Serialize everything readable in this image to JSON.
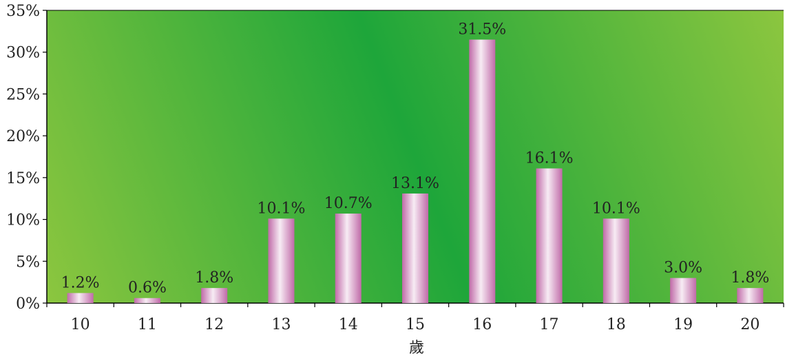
{
  "chart_data": {
    "type": "bar",
    "categories": [
      "10",
      "11",
      "12",
      "13",
      "14",
      "15",
      "16",
      "17",
      "18",
      "19",
      "20"
    ],
    "values": [
      1.2,
      0.6,
      1.8,
      10.1,
      10.7,
      13.1,
      31.5,
      16.1,
      10.1,
      3.0,
      1.8
    ],
    "data_labels": [
      "1.2%",
      "0.6%",
      "1.8%",
      "10.1%",
      "10.7%",
      "13.1%",
      "31.5%",
      "16.1%",
      "10.1%",
      "3.0%",
      "1.8%"
    ],
    "xlabel": "歲",
    "ylim": [
      0,
      35
    ],
    "y_ticks": [
      0,
      5,
      10,
      15,
      20,
      25,
      30,
      35
    ],
    "y_tick_labels": [
      "0%",
      "5%",
      "10%",
      "15%",
      "20%",
      "25%",
      "30%",
      "35%"
    ],
    "grid": false,
    "colors": {
      "plot_bg_light": "#8cc63f",
      "plot_bg_dark": "#1ea63a",
      "bar_pink": "#d17fbd",
      "bar_light": "#f5e8f2"
    }
  }
}
